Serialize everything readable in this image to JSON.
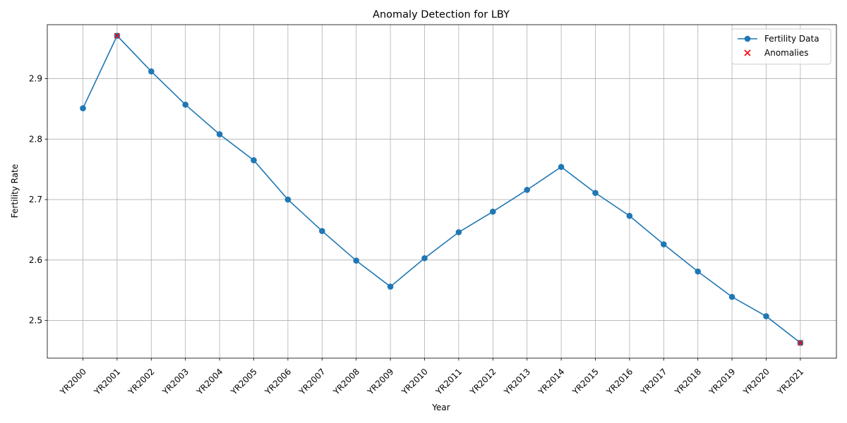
{
  "chart_data": {
    "type": "line",
    "title": "Anomaly Detection for LBY",
    "xlabel": "Year",
    "ylabel": "Fertility Rate",
    "categories": [
      "YR2000",
      "YR2001",
      "YR2002",
      "YR2003",
      "YR2004",
      "YR2005",
      "YR2006",
      "YR2007",
      "YR2008",
      "YR2009",
      "YR2010",
      "YR2011",
      "YR2012",
      "YR2013",
      "YR2014",
      "YR2015",
      "YR2016",
      "YR2017",
      "YR2018",
      "YR2019",
      "YR2020",
      "YR2021"
    ],
    "series": [
      {
        "name": "Fertility Data",
        "color": "#1f77b4",
        "marker": "circle",
        "values": [
          2.851,
          2.971,
          2.912,
          2.857,
          2.808,
          2.765,
          2.7,
          2.648,
          2.599,
          2.556,
          2.603,
          2.646,
          2.68,
          2.716,
          2.754,
          2.711,
          2.673,
          2.626,
          2.581,
          2.539,
          2.507,
          2.463
        ]
      },
      {
        "name": "Anomalies",
        "color": "#ff0000",
        "marker": "x",
        "points": [
          {
            "x": "YR2001",
            "y": 2.971
          },
          {
            "x": "YR2021",
            "y": 2.463
          }
        ]
      }
    ],
    "yticks": [
      2.5,
      2.6,
      2.7,
      2.8,
      2.9
    ],
    "ylim": [
      2.4377,
      2.9893
    ],
    "grid": true,
    "legend_position": "top-right"
  }
}
